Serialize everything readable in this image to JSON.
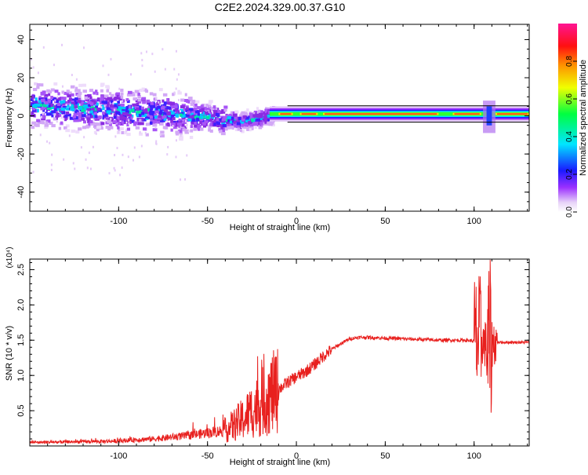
{
  "title": "C2E2.2024.329.00.37.G10",
  "colors": {
    "snr_line": "#e8201e",
    "frame": "#000000",
    "background": "#ffffff"
  },
  "colorbar": {
    "label": "Normalized spectral amplitude",
    "ticks": [
      "0.0",
      "0.2",
      "0.4",
      "0.6",
      "0.8"
    ],
    "colormap": "rainbow (white-purple-blue-cyan-green-yellow-red-magenta)"
  },
  "chart_data": [
    {
      "type": "heatmap",
      "xlabel": "Height of straight line (km)",
      "ylabel": "Frequency (Hz)",
      "xlim": [
        -150,
        131
      ],
      "ylim": [
        -50,
        48
      ],
      "xticks": [
        "-100",
        "-50",
        "0",
        "50",
        "100"
      ],
      "yticks": [
        "-40",
        "-20",
        "0",
        "20",
        "40"
      ],
      "band_center_hz": [
        {
          "x": -150,
          "y": 5
        },
        {
          "x": -100,
          "y": 3
        },
        {
          "x": -60,
          "y": 0
        },
        {
          "x": -30,
          "y": -3
        },
        {
          "x": -15,
          "y": 0
        },
        {
          "x": 0,
          "y": 1
        },
        {
          "x": 50,
          "y": 1
        },
        {
          "x": 100,
          "y": 1
        },
        {
          "x": 131,
          "y": 1
        }
      ],
      "grid": false
    },
    {
      "type": "line",
      "xlabel": "Height of straight line (km)",
      "ylabel": "SNR (10 * v/v)",
      "y_multiplier_label": "(x10⁴)",
      "xlim": [
        -150,
        131
      ],
      "ylim": [
        0,
        2.65
      ],
      "xticks": [
        "-100",
        "-50",
        "0",
        "50",
        "100"
      ],
      "yticks": [
        "0.5",
        "1.0",
        "1.5",
        "2.0",
        "2.5"
      ],
      "series": [
        {
          "envelope_x": [
            -150,
            -120,
            -100,
            -90,
            -80,
            -60,
            -40,
            -35,
            -30,
            -25,
            -20,
            -15,
            -10,
            -5,
            0,
            5,
            10,
            15,
            20,
            25,
            30,
            35,
            40,
            50,
            60,
            70,
            80,
            90,
            95,
            100,
            104,
            106,
            108,
            110,
            112,
            115,
            120,
            131
          ],
          "envelope_y": [
            0.05,
            0.06,
            0.07,
            0.09,
            0.1,
            0.15,
            0.22,
            0.3,
            0.38,
            0.5,
            0.6,
            0.72,
            0.8,
            0.9,
            0.98,
            1.05,
            1.15,
            1.27,
            1.37,
            1.45,
            1.52,
            1.54,
            1.54,
            1.53,
            1.52,
            1.51,
            1.5,
            1.5,
            1.5,
            1.49,
            1.5,
            1.45,
            1.4,
            1.46,
            1.47,
            1.47,
            1.47,
            1.47
          ]
        }
      ],
      "grid": false
    }
  ]
}
